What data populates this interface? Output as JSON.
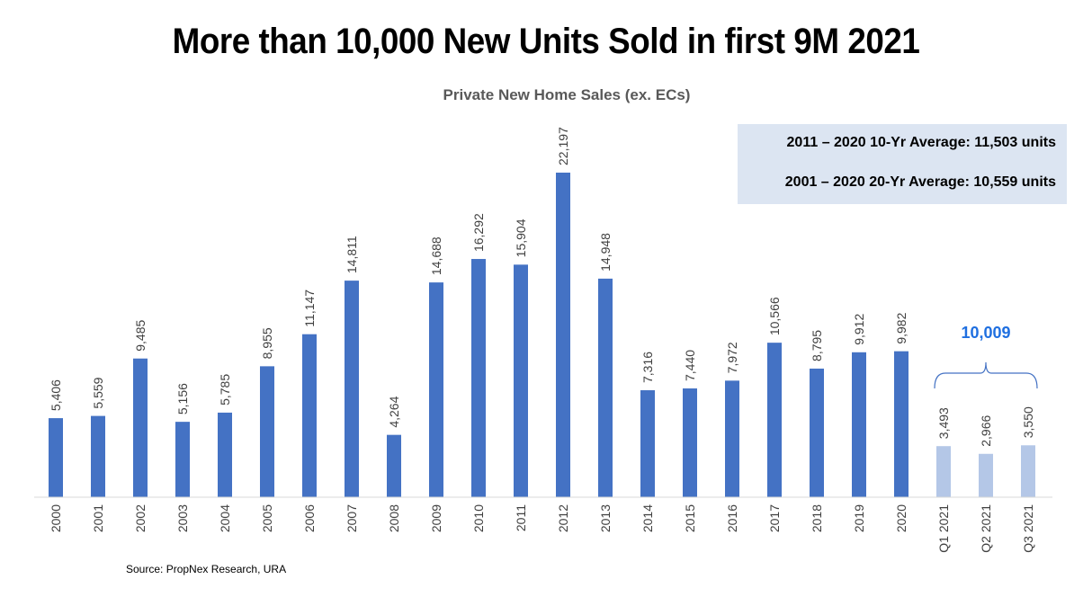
{
  "header": {
    "title": "More than 10,000 New Units Sold in first 9M 2021"
  },
  "averages": {
    "ten_year": "2011 – 2020 10-Yr Average: 11,503 units",
    "twenty_year": "2001 – 2020 20-Yr Average: 10,559 units"
  },
  "footer": {
    "source": "Source: PropNex Research, URA"
  },
  "chart_data": {
    "type": "bar",
    "title": "Private New Home Sales (ex. ECs)",
    "xlabel": "",
    "ylabel": "",
    "ylim": [
      0,
      25000
    ],
    "grid": false,
    "legend": "none",
    "categories": [
      "2000",
      "2001",
      "2002",
      "2003",
      "2004",
      "2005",
      "2006",
      "2007",
      "2008",
      "2009",
      "2010",
      "2011",
      "2012",
      "2013",
      "2014",
      "2015",
      "2016",
      "2017",
      "2018",
      "2019",
      "2020",
      "Q1 2021",
      "Q2 2021",
      "Q3 2021"
    ],
    "values": [
      5406,
      5559,
      9485,
      5156,
      5785,
      8955,
      11147,
      14811,
      4264,
      14688,
      16292,
      15904,
      22197,
      14948,
      7316,
      7440,
      7972,
      10566,
      8795,
      9912,
      9982,
      3493,
      2966,
      3550
    ],
    "value_labels": [
      "5,406",
      "5,559",
      "9,485",
      "5,156",
      "5,785",
      "8,955",
      "11,147",
      "14,811",
      "4,264",
      "14,688",
      "16,292",
      "15,904",
      "22,197",
      "14,948",
      "7,316",
      "7,440",
      "7,972",
      "10,566",
      "8,795",
      "9,912",
      "9,982",
      "3,493",
      "2,966",
      "3,550"
    ],
    "colors": {
      "annual": "#4472c4",
      "quarterly": "#b4c7e7",
      "annotation": "#1f6fe0"
    },
    "annotation": {
      "label": "10,009",
      "value": 10009,
      "spans": [
        "Q1 2021",
        "Q3 2021"
      ]
    }
  }
}
